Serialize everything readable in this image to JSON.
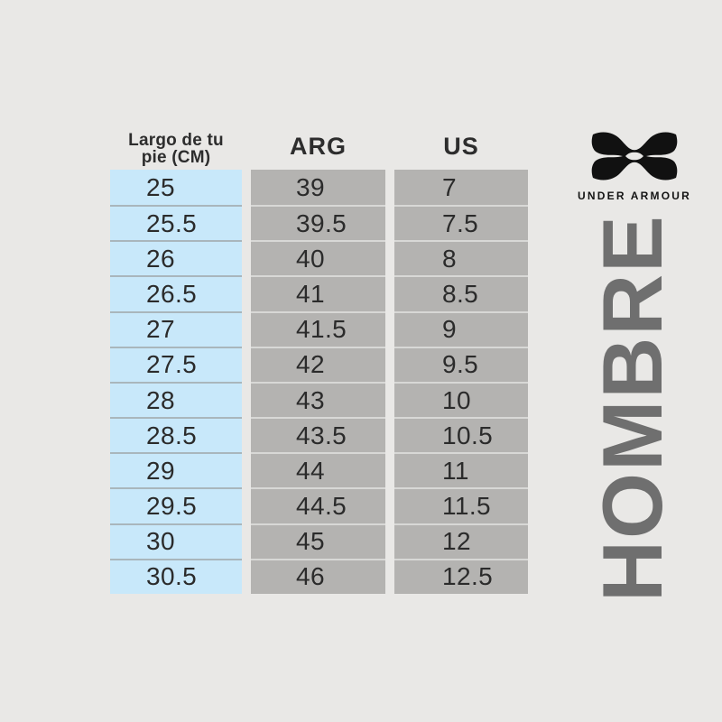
{
  "page": {
    "background_color": "#e9e8e6"
  },
  "size_chart": {
    "header": {
      "cm_line1": "Largo de tu",
      "cm_line2": "pie (CM)",
      "arg": "ARG",
      "us": "US"
    },
    "rows": [
      {
        "cm": "25",
        "arg": "39",
        "us": "7"
      },
      {
        "cm": "25.5",
        "arg": "39.5",
        "us": "7.5"
      },
      {
        "cm": "26",
        "arg": "40",
        "us": "8"
      },
      {
        "cm": "26.5",
        "arg": "41",
        "us": "8.5"
      },
      {
        "cm": "27",
        "arg": "41.5",
        "us": "9"
      },
      {
        "cm": "27.5",
        "arg": "42",
        "us": "9.5"
      },
      {
        "cm": "28",
        "arg": "43",
        "us": "10"
      },
      {
        "cm": "28.5",
        "arg": "43.5",
        "us": "10.5"
      },
      {
        "cm": "29",
        "arg": "44",
        "us": "11"
      },
      {
        "cm": "29.5",
        "arg": "44.5",
        "us": "11.5"
      },
      {
        "cm": "30",
        "arg": "45",
        "us": "12"
      },
      {
        "cm": "30.5",
        "arg": "46",
        "us": "12.5"
      }
    ],
    "colors": {
      "cm_cell_background": "#c8e8fa",
      "size_cell_background": "#b4b3b1",
      "cm_row_divider": "#a9b6bc",
      "size_row_divider": "#d8d8d6",
      "cell_text": "#2b2b2b"
    }
  },
  "brand": {
    "logo_icon": "under-armour-logo",
    "wordmark": "UNDER ARMOUR",
    "vertical_label": "HOMBRE",
    "vertical_label_color": "#6f6f6f",
    "logo_color": "#111111"
  }
}
